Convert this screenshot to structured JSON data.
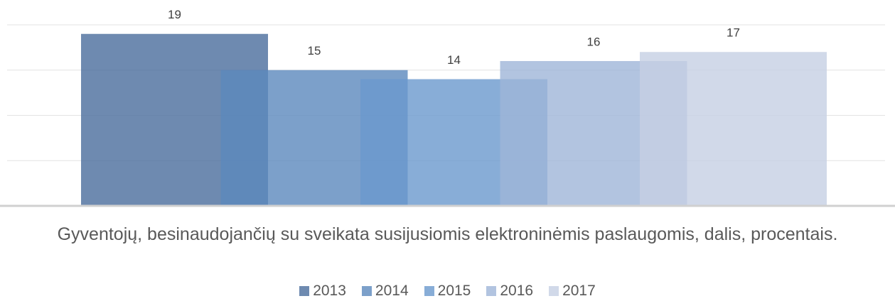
{
  "chart_data": {
    "type": "bar",
    "title": "Gyventojų, besinaudojančių su sveikata susijusiomis elektroninėmis paslaugomis, dalis, procentais.",
    "series": [
      {
        "name": "2013",
        "color": "#4a6d9c",
        "values": [
          19
        ]
      },
      {
        "name": "2014",
        "color": "#5b88bd",
        "values": [
          15
        ]
      },
      {
        "name": "2015",
        "color": "#6a99cd",
        "values": [
          14
        ]
      },
      {
        "name": "2016",
        "color": "#9fb5d8",
        "values": [
          16
        ]
      },
      {
        "name": "2017",
        "color": "#c5d0e4",
        "values": [
          17
        ]
      }
    ],
    "ylim": [
      0,
      20
    ],
    "yticks": [
      0,
      5,
      10,
      15,
      20
    ],
    "grid": true,
    "legend": "bottom"
  }
}
